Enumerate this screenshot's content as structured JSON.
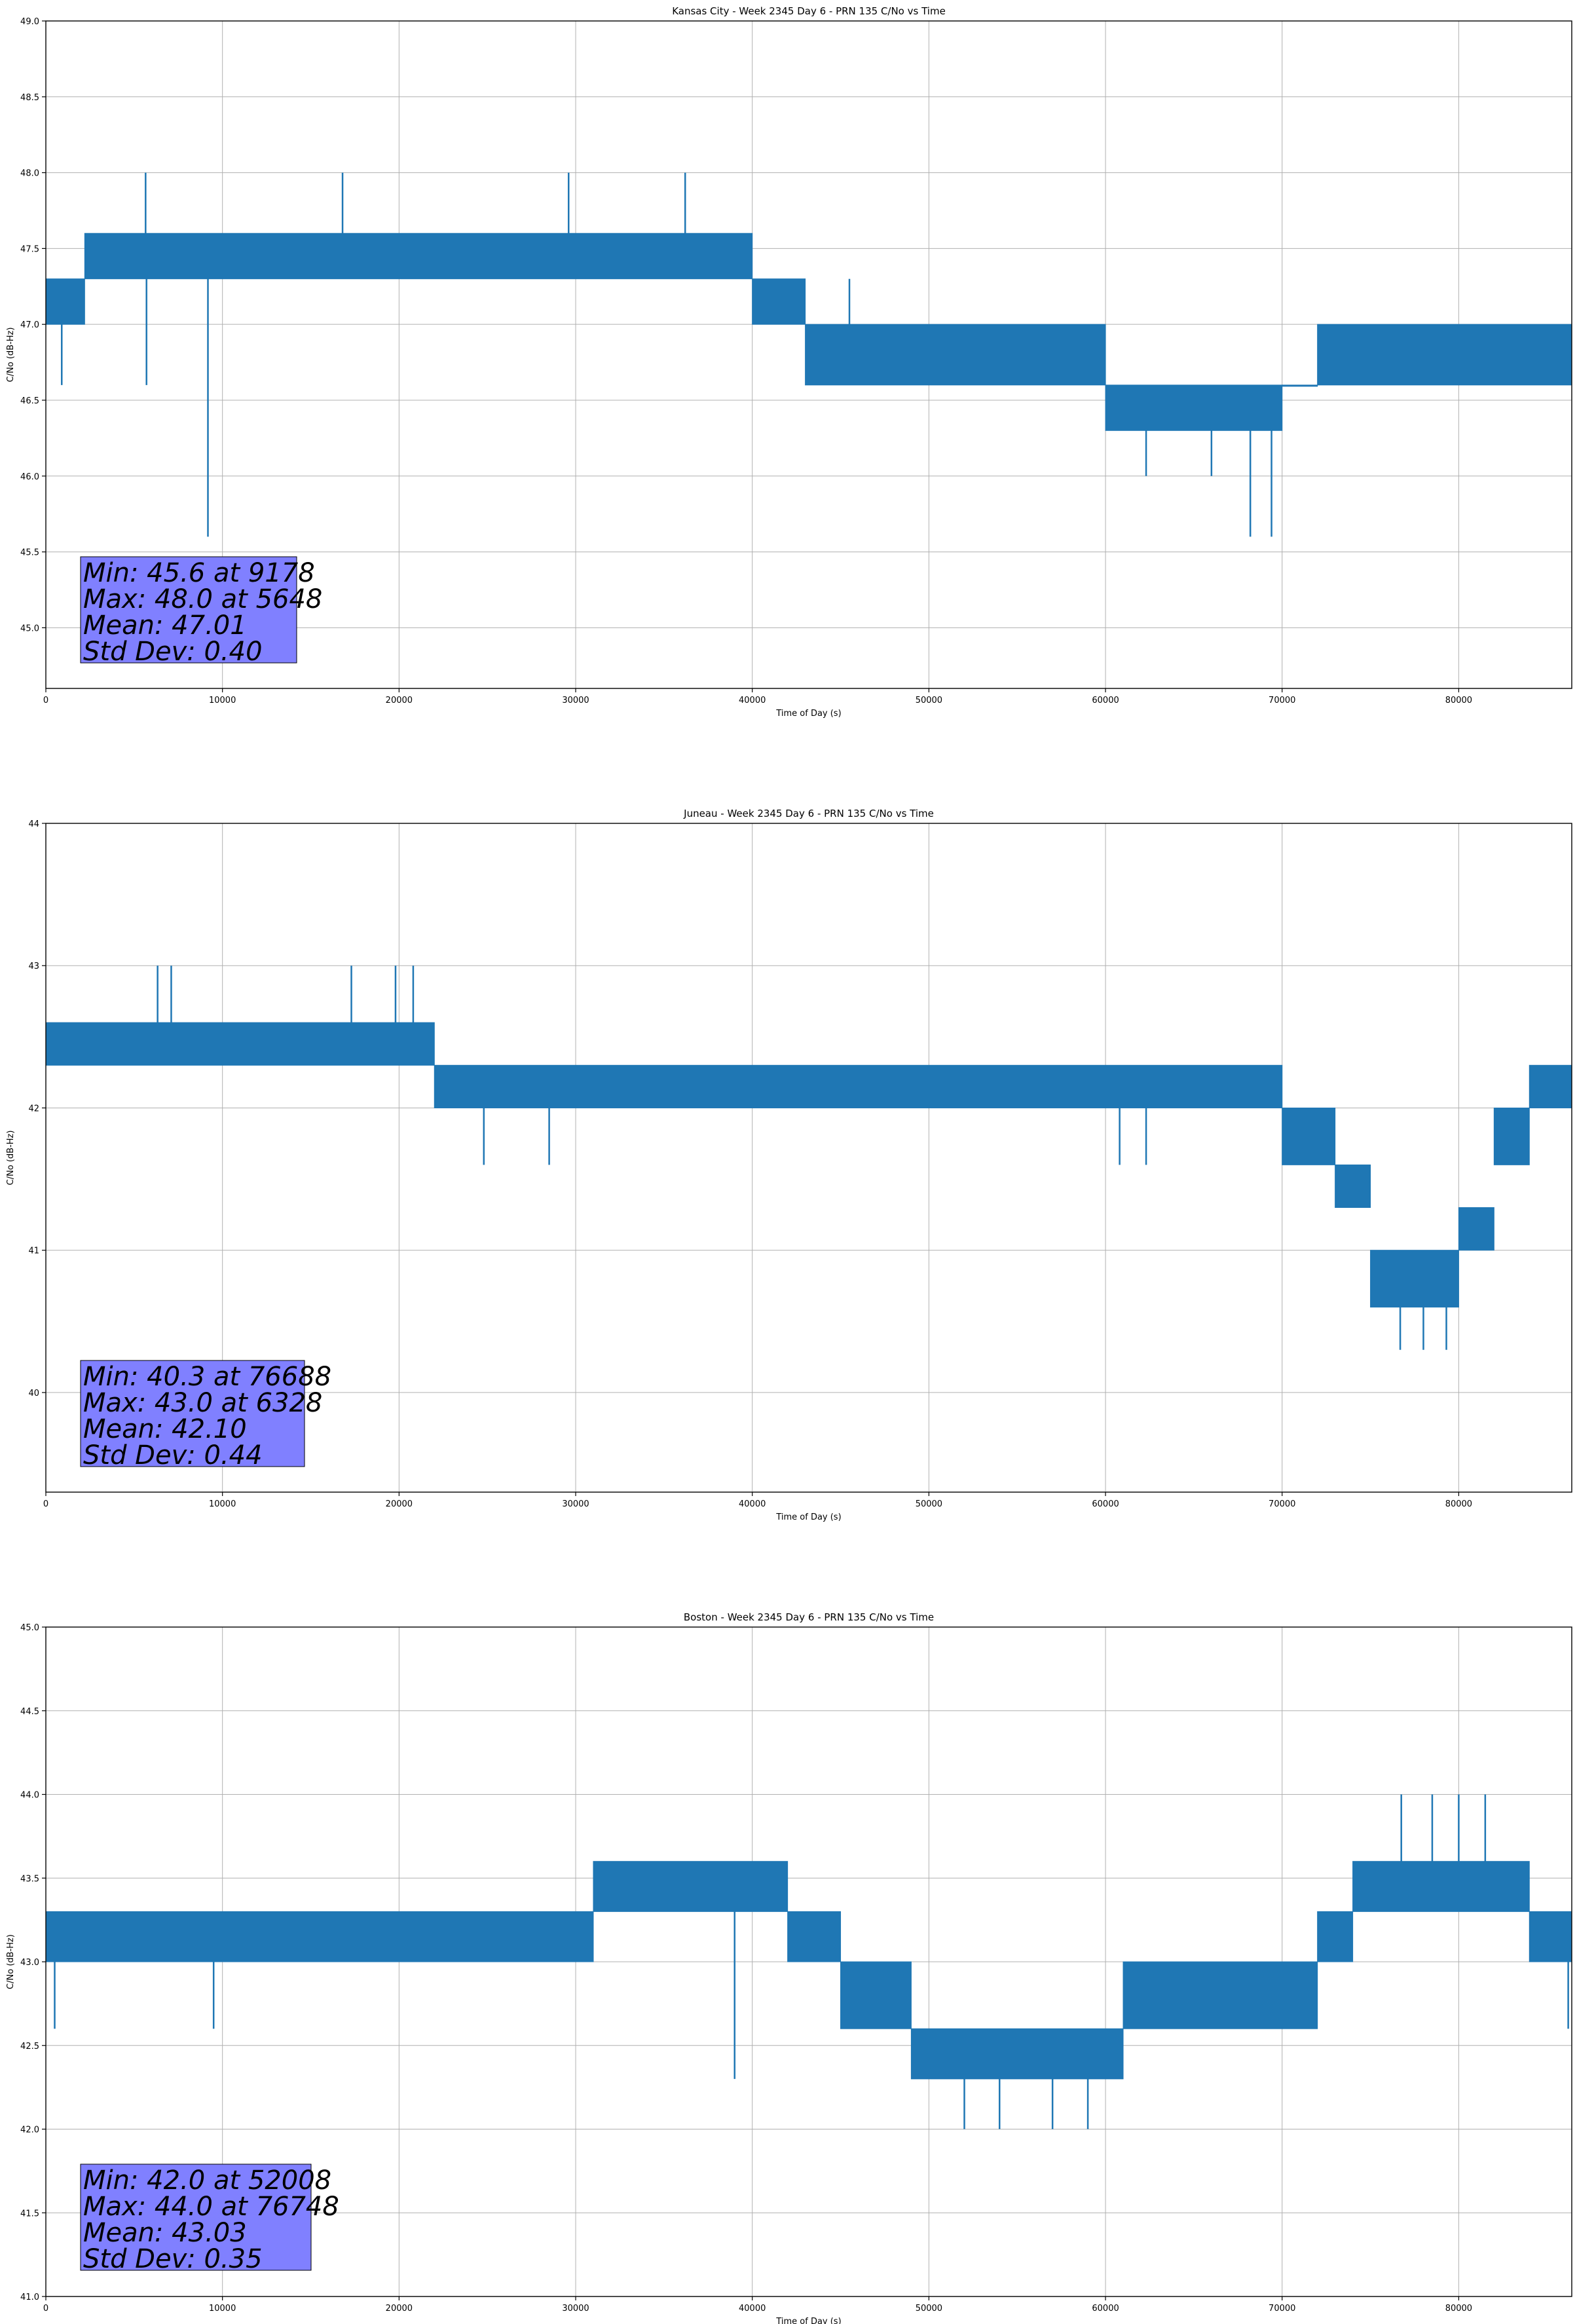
{
  "figure": {
    "color_series": "#1f77b4",
    "color_statbox": "#8080ff",
    "color_grid": "#b0b0b0"
  },
  "chart_data": [
    {
      "type": "line",
      "title": "Kansas City - Week 2345 Day 6 - PRN 135 C/No vs Time",
      "xlabel": "Time of Day (s)",
      "ylabel": "C/No (dB-Hz)",
      "xlim": [
        0,
        86400
      ],
      "ylim": [
        44.6,
        49.0
      ],
      "xticks": [
        0,
        10000,
        20000,
        30000,
        40000,
        50000,
        60000,
        70000,
        80000
      ],
      "yticks": [
        45.0,
        45.5,
        46.0,
        46.5,
        47.0,
        47.5,
        48.0,
        48.5,
        49.0
      ],
      "ytick_labels": [
        "45.0",
        "45.5",
        "46.0",
        "46.5",
        "47.0",
        "47.5",
        "48.0",
        "48.5",
        "49.0"
      ],
      "grid": true,
      "band_series": [
        {
          "x0": 0,
          "x1": 2200,
          "low": 47.0,
          "high": 47.3
        },
        {
          "x0": 2200,
          "x1": 40000,
          "low": 47.3,
          "high": 47.6
        },
        {
          "x0": 40000,
          "x1": 43000,
          "low": 47.0,
          "high": 47.3
        },
        {
          "x0": 43000,
          "x1": 60000,
          "low": 46.6,
          "high": 47.0
        },
        {
          "x0": 60000,
          "x1": 70000,
          "low": 46.3,
          "high": 46.6
        },
        {
          "x0": 70000,
          "x1": 72000,
          "low": 46.6,
          "high": 46.6
        },
        {
          "x0": 72000,
          "x1": 86400,
          "low": 46.6,
          "high": 47.0
        }
      ],
      "spikes": [
        {
          "x": 5648,
          "y": 48.0
        },
        {
          "x": 9178,
          "y": 45.6
        },
        {
          "x": 16800,
          "y": 48.0
        },
        {
          "x": 29600,
          "y": 48.0
        },
        {
          "x": 36200,
          "y": 48.0
        },
        {
          "x": 5700,
          "y": 46.6
        },
        {
          "x": 62300,
          "y": 46.0
        },
        {
          "x": 66000,
          "y": 46.0
        },
        {
          "x": 68200,
          "y": 45.6
        },
        {
          "x": 69400,
          "y": 45.6
        },
        {
          "x": 900,
          "y": 46.6
        },
        {
          "x": 45500,
          "y": 47.3
        }
      ],
      "stats": {
        "min": "Min: 45.6 at 9178",
        "max": "Max: 48.0 at 5648",
        "mean": "Mean: 47.01",
        "std": "Std Dev: 0.40"
      }
    },
    {
      "type": "line",
      "title": "Juneau - Week 2345 Day 6 - PRN 135 C/No vs Time",
      "xlabel": "Time of Day (s)",
      "ylabel": "C/No (dB-Hz)",
      "xlim": [
        0,
        86400
      ],
      "ylim": [
        39.3,
        44.0
      ],
      "xticks": [
        0,
        10000,
        20000,
        30000,
        40000,
        50000,
        60000,
        70000,
        80000
      ],
      "yticks": [
        40,
        41,
        42,
        43,
        44
      ],
      "ytick_labels": [
        "40",
        "41",
        "42",
        "43",
        "44"
      ],
      "grid": true,
      "band_series": [
        {
          "x0": 0,
          "x1": 22000,
          "low": 42.3,
          "high": 42.6
        },
        {
          "x0": 22000,
          "x1": 70000,
          "low": 42.0,
          "high": 42.3
        },
        {
          "x0": 70000,
          "x1": 73000,
          "low": 41.6,
          "high": 42.0
        },
        {
          "x0": 73000,
          "x1": 75000,
          "low": 41.3,
          "high": 41.6
        },
        {
          "x0": 75000,
          "x1": 80000,
          "low": 40.6,
          "high": 41.0
        },
        {
          "x0": 80000,
          "x1": 82000,
          "low": 41.0,
          "high": 41.3
        },
        {
          "x0": 82000,
          "x1": 84000,
          "low": 41.6,
          "high": 42.0
        },
        {
          "x0": 84000,
          "x1": 86400,
          "low": 42.0,
          "high": 42.3
        }
      ],
      "spikes": [
        {
          "x": 6328,
          "y": 43.0
        },
        {
          "x": 7100,
          "y": 43.0
        },
        {
          "x": 17300,
          "y": 43.0
        },
        {
          "x": 19800,
          "y": 43.0
        },
        {
          "x": 20800,
          "y": 43.0
        },
        {
          "x": 76688,
          "y": 40.3
        },
        {
          "x": 78000,
          "y": 40.3
        },
        {
          "x": 79300,
          "y": 40.3
        },
        {
          "x": 24800,
          "y": 41.6
        },
        {
          "x": 28500,
          "y": 41.6
        },
        {
          "x": 60800,
          "y": 41.6
        },
        {
          "x": 62300,
          "y": 41.6
        }
      ],
      "stats": {
        "min": "Min: 40.3 at 76688",
        "max": "Max: 43.0 at 6328",
        "mean": "Mean: 42.10",
        "std": "Std Dev: 0.44"
      }
    },
    {
      "type": "line",
      "title": "Boston - Week 2345 Day 6 - PRN 135 C/No vs Time",
      "xlabel": "Time of Day (s)",
      "ylabel": "C/No (dB-Hz)",
      "xlim": [
        0,
        86400
      ],
      "ylim": [
        41.0,
        45.0
      ],
      "xticks": [
        0,
        10000,
        20000,
        30000,
        40000,
        50000,
        60000,
        70000,
        80000
      ],
      "yticks": [
        41.0,
        41.5,
        42.0,
        42.5,
        43.0,
        43.5,
        44.0,
        44.5,
        45.0
      ],
      "ytick_labels": [
        "41.0",
        "41.5",
        "42.0",
        "42.5",
        "43.0",
        "43.5",
        "44.0",
        "44.5",
        "45.0"
      ],
      "grid": true,
      "band_series": [
        {
          "x0": 0,
          "x1": 31000,
          "low": 43.0,
          "high": 43.3
        },
        {
          "x0": 31000,
          "x1": 42000,
          "low": 43.3,
          "high": 43.6
        },
        {
          "x0": 42000,
          "x1": 45000,
          "low": 43.0,
          "high": 43.3
        },
        {
          "x0": 45000,
          "x1": 49000,
          "low": 42.6,
          "high": 43.0
        },
        {
          "x0": 49000,
          "x1": 61000,
          "low": 42.3,
          "high": 42.6
        },
        {
          "x0": 61000,
          "x1": 72000,
          "low": 42.6,
          "high": 43.0
        },
        {
          "x0": 72000,
          "x1": 74000,
          "low": 43.0,
          "high": 43.3
        },
        {
          "x0": 74000,
          "x1": 84000,
          "low": 43.3,
          "high": 43.6
        },
        {
          "x0": 84000,
          "x1": 86400,
          "low": 43.0,
          "high": 43.3
        }
      ],
      "spikes": [
        {
          "x": 76748,
          "y": 44.0
        },
        {
          "x": 78500,
          "y": 44.0
        },
        {
          "x": 80000,
          "y": 44.0
        },
        {
          "x": 81500,
          "y": 44.0
        },
        {
          "x": 52008,
          "y": 42.0
        },
        {
          "x": 54000,
          "y": 42.0
        },
        {
          "x": 57000,
          "y": 42.0
        },
        {
          "x": 59000,
          "y": 42.0
        },
        {
          "x": 39000,
          "y": 42.3
        },
        {
          "x": 500,
          "y": 42.6
        },
        {
          "x": 9500,
          "y": 42.6
        },
        {
          "x": 86200,
          "y": 42.6
        }
      ],
      "stats": {
        "min": "Min: 42.0 at 52008",
        "max": "Max: 44.0 at 76748",
        "mean": "Mean: 43.03",
        "std": "Std Dev: 0.35"
      }
    }
  ]
}
